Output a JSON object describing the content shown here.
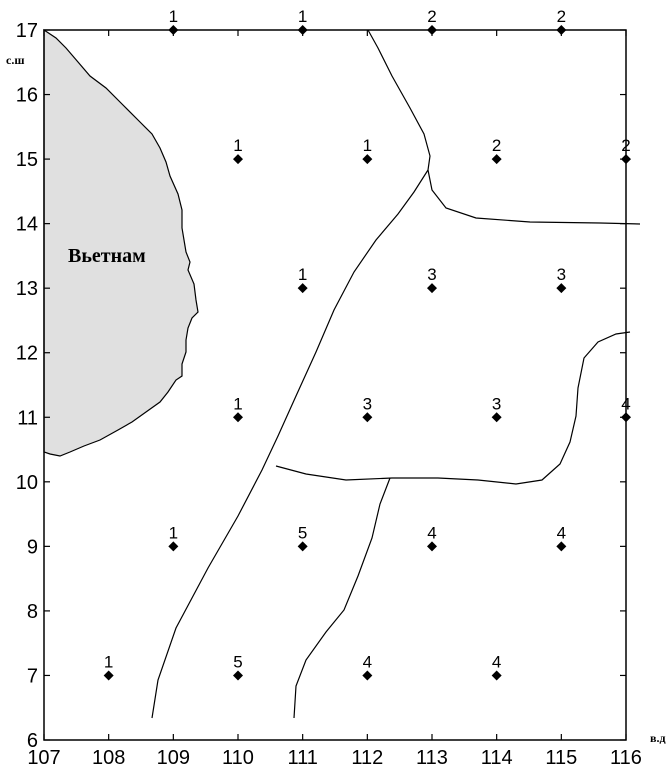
{
  "map": {
    "units": {
      "y": "с.ш",
      "x": "в.д"
    },
    "country_label": "Вьетнам",
    "colors": {
      "land": "#e0e0e0",
      "line": "#000000",
      "point": "#000000"
    },
    "x_ticks": [
      107,
      108,
      109,
      110,
      111,
      112,
      113,
      114,
      115,
      116
    ],
    "y_ticks": [
      6,
      7,
      8,
      9,
      10,
      11,
      12,
      13,
      14,
      15,
      16,
      17
    ],
    "xlim": [
      107,
      116
    ],
    "ylim": [
      6,
      17
    ],
    "points": [
      {
        "lon": 109,
        "lat": 17,
        "label": "1"
      },
      {
        "lon": 111,
        "lat": 17,
        "label": "1"
      },
      {
        "lon": 113,
        "lat": 17,
        "label": "2"
      },
      {
        "lon": 115,
        "lat": 17,
        "label": "2"
      },
      {
        "lon": 110,
        "lat": 15,
        "label": "1"
      },
      {
        "lon": 112,
        "lat": 15,
        "label": "1"
      },
      {
        "lon": 114,
        "lat": 15,
        "label": "2"
      },
      {
        "lon": 116,
        "lat": 15,
        "label": "2"
      },
      {
        "lon": 111,
        "lat": 13,
        "label": "1"
      },
      {
        "lon": 113,
        "lat": 13,
        "label": "3"
      },
      {
        "lon": 115,
        "lat": 13,
        "label": "3"
      },
      {
        "lon": 110,
        "lat": 11,
        "label": "1"
      },
      {
        "lon": 112,
        "lat": 11,
        "label": "3"
      },
      {
        "lon": 114,
        "lat": 11,
        "label": "3"
      },
      {
        "lon": 116,
        "lat": 11,
        "label": "4"
      },
      {
        "lon": 109,
        "lat": 9,
        "label": "1"
      },
      {
        "lon": 111,
        "lat": 9,
        "label": "5"
      },
      {
        "lon": 113,
        "lat": 9,
        "label": "4"
      },
      {
        "lon": 115,
        "lat": 9,
        "label": "4"
      },
      {
        "lon": 108,
        "lat": 7,
        "label": "1"
      },
      {
        "lon": 110,
        "lat": 7,
        "label": "5"
      },
      {
        "lon": 112,
        "lat": 7,
        "label": "4"
      },
      {
        "lon": 114,
        "lat": 7,
        "label": "4"
      }
    ]
  }
}
